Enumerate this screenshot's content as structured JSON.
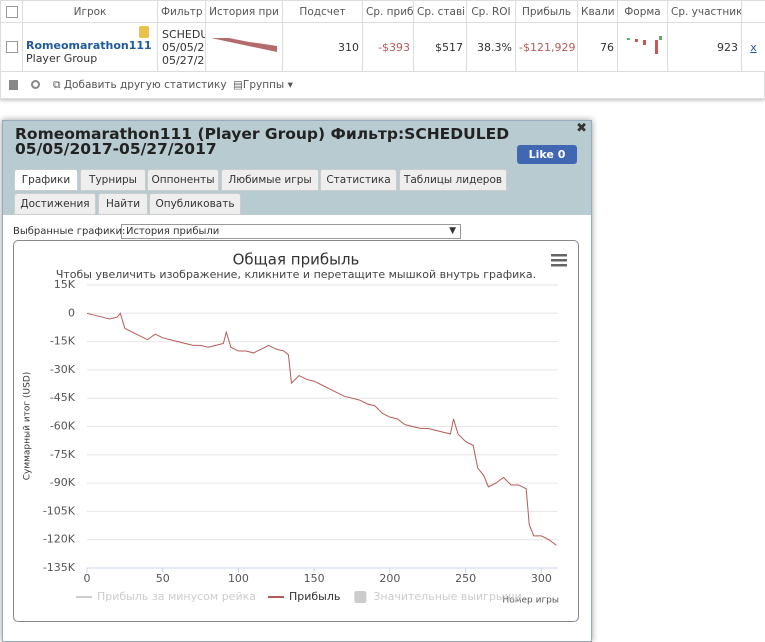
{
  "table": {
    "headers": [
      "Игрок",
      "Фильтр",
      "История при",
      "Подсчет",
      "Ср. приб",
      "Ср. ставі",
      "Ср. ROI",
      "Прибыль",
      "Квали",
      "Форма",
      "Ср. участник"
    ],
    "row": {
      "player": "Romeomarathon111",
      "group": "Player Group",
      "filter": [
        "SCHEDU",
        "05/05/2",
        "05/27/2"
      ],
      "count": "310",
      "avg_profit": "-$393",
      "avg_stake": "$517",
      "avg_roi": "38.3%",
      "profit": "-$121,929",
      "itm": "76",
      "avg_field": "923",
      "remove": "x"
    }
  },
  "toolbar": {
    "add_stat": "Добавить другую статистику",
    "groups": "Группы"
  },
  "dialog": {
    "title": "Romeomarathon111 (Player Group) Фильтр:SCHEDULED 05/05/2017-05/27/2017",
    "like": "Like",
    "like_count": "0",
    "tabs": [
      "Графики",
      "Турниры",
      "Оппоненты",
      "Любимые игры",
      "Статистика",
      "Таблицы лидеров",
      "Достижения",
      "Найти",
      "Опубликовать"
    ],
    "select_label": "Выбранные графики:",
    "select_value": "История прибыли"
  },
  "chart_data": {
    "type": "line",
    "title": "Общая прибыль",
    "subtitle": "Чтобы увеличить изображение, кликните и перетащите мышкой внутрь графика.",
    "y_label": "Суммарный итог (USD)",
    "x_label": "Номер игры",
    "x": [
      0,
      5,
      10,
      15,
      20,
      22,
      25,
      30,
      35,
      40,
      45,
      50,
      55,
      60,
      65,
      70,
      75,
      80,
      85,
      90,
      92,
      95,
      100,
      105,
      110,
      115,
      120,
      125,
      130,
      133,
      135,
      140,
      145,
      150,
      155,
      160,
      165,
      170,
      175,
      180,
      185,
      190,
      195,
      200,
      205,
      210,
      215,
      220,
      225,
      230,
      235,
      240,
      242,
      245,
      250,
      255,
      258,
      262,
      265,
      270,
      275,
      280,
      285,
      290,
      292,
      295,
      300,
      305,
      310
    ],
    "series": [
      {
        "name": "Прибыль",
        "color": "#b55a5a",
        "values": [
          0,
          -1000,
          -2000,
          -3000,
          -2000,
          0,
          -8000,
          -10000,
          -12000,
          -14000,
          -11000,
          -13000,
          -14000,
          -15000,
          -16000,
          -17000,
          -17000,
          -18000,
          -17000,
          -16000,
          -10000,
          -18000,
          -20000,
          -20000,
          -21000,
          -19000,
          -17000,
          -19000,
          -20000,
          -22000,
          -37000,
          -33000,
          -35000,
          -36000,
          -38000,
          -40000,
          -42000,
          -44000,
          -45000,
          -46000,
          -48000,
          -49000,
          -53000,
          -55000,
          -56000,
          -59000,
          -60000,
          -61000,
          -61000,
          -62000,
          -63000,
          -64000,
          -56000,
          -64000,
          -68000,
          -70000,
          -82000,
          -86000,
          -92000,
          -90000,
          -87000,
          -91000,
          -91000,
          -93000,
          -112000,
          -118000,
          -118000,
          -120000,
          -123000
        ]
      }
    ],
    "inactive_legend": [
      {
        "name": "Прибыль за минусом рейка",
        "symbol": "line"
      },
      {
        "name": "Значительные выигрыши",
        "symbol": "box"
      }
    ],
    "xlim": [
      0,
      311
    ],
    "xticks": [
      0,
      50,
      100,
      150,
      200,
      250,
      300
    ],
    "ylim": [
      -135000,
      15000
    ],
    "yticks": [
      {
        "value": 15000,
        "label": "15K"
      },
      0,
      {
        "value": -15000,
        "label": "-15K"
      },
      {
        "value": -30000,
        "label": "-30K"
      },
      {
        "value": -45000,
        "label": "-45K"
      },
      {
        "value": -60000,
        "label": "-60K"
      },
      {
        "value": -75000,
        "label": "-75K"
      },
      {
        "value": -90000,
        "label": "-90K"
      },
      {
        "value": -105000,
        "label": "-105K"
      },
      {
        "value": -120000,
        "label": "-120K"
      },
      {
        "value": -135000,
        "label": "-135K"
      }
    ],
    "grid": true
  }
}
